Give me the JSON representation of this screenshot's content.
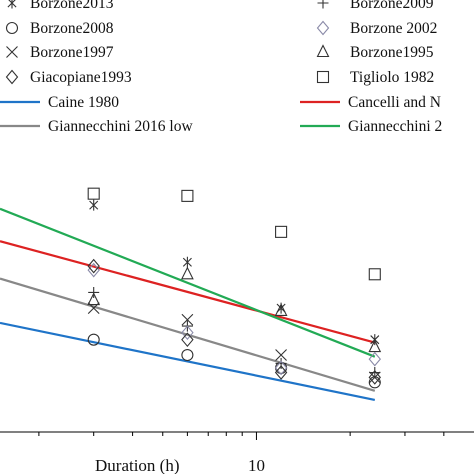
{
  "chart_data": {
    "type": "scatter",
    "title": "",
    "xlabel": "Duration (h)",
    "ylabel": "",
    "x_scale": "log",
    "xlim": [
      1.5,
      50
    ],
    "ylim": [
      8,
      80
    ],
    "x_tick_labels": [
      {
        "value": 10,
        "label": "10"
      }
    ],
    "grid": false,
    "legend_position": "top",
    "point_series": [
      {
        "name": "Borzone2013",
        "marker": "asterisk",
        "color": "#333333",
        "points": [
          [
            3,
            51
          ],
          [
            6,
            32
          ],
          [
            12,
            22
          ],
          [
            24,
            17
          ]
        ]
      },
      {
        "name": "Borzone2009",
        "marker": "plus",
        "color": "#333333",
        "points": [
          [
            3,
            25
          ],
          [
            6,
            19
          ],
          [
            12,
            14
          ],
          [
            24,
            13
          ]
        ]
      },
      {
        "name": "Borzone2008",
        "marker": "circle",
        "color": "#333333",
        "points": [
          [
            3,
            17
          ],
          [
            6,
            15
          ],
          [
            12,
            13.5
          ],
          [
            24,
            12
          ]
        ]
      },
      {
        "name": "Borzone 2002",
        "marker": "diamond",
        "color": "#8a8aa8",
        "points": [
          [
            3,
            30
          ],
          [
            6,
            18
          ],
          [
            12,
            13.5
          ],
          [
            24,
            14.5
          ]
        ]
      },
      {
        "name": "Borzone1997",
        "marker": "x",
        "color": "#333333",
        "points": [
          [
            3,
            22
          ],
          [
            6,
            20
          ],
          [
            12,
            15
          ],
          [
            24,
            12.5
          ]
        ]
      },
      {
        "name": "Borzone1995",
        "marker": "triangle",
        "color": "#333333",
        "points": [
          [
            3,
            23.5
          ],
          [
            6,
            29
          ],
          [
            12,
            21.5
          ],
          [
            24,
            16
          ]
        ]
      },
      {
        "name": "Giacopiane1993",
        "marker": "diamond",
        "color": "#333333",
        "points": [
          [
            3,
            31
          ],
          [
            6,
            17
          ],
          [
            12,
            13
          ],
          [
            24,
            12.5
          ]
        ]
      },
      {
        "name": "Tigliolo 1982",
        "marker": "square",
        "color": "#333333",
        "points": [
          [
            3,
            56
          ],
          [
            6,
            55
          ],
          [
            12,
            41
          ],
          [
            24,
            29
          ]
        ]
      }
    ],
    "line_series": [
      {
        "name": "Caine 1980",
        "color": "#1f74c8",
        "points": [
          [
            1.5,
            19.5
          ],
          [
            24,
            10.4
          ]
        ]
      },
      {
        "name": "Cancelli and N",
        "color": "#dd2222",
        "points": [
          [
            1.5,
            38
          ],
          [
            24,
            16.6
          ]
        ]
      },
      {
        "name": "Giannecchini 2016 low",
        "color": "#888888",
        "points": [
          [
            1.5,
            28
          ],
          [
            24,
            11.2
          ]
        ]
      },
      {
        "name": "Giannecchini 2",
        "color": "#22aa55",
        "points": [
          [
            1.5,
            49.5
          ],
          [
            24,
            14.8
          ]
        ]
      }
    ]
  }
}
